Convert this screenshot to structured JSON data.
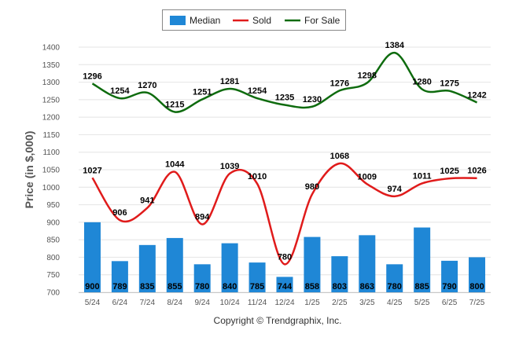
{
  "chart_data": {
    "type": "bar",
    "ylabel": "Price (in $,000)",
    "ylim": [
      700,
      1400
    ],
    "yticks": [
      700,
      750,
      800,
      850,
      900,
      950,
      1000,
      1050,
      1100,
      1150,
      1200,
      1250,
      1300,
      1350,
      1400
    ],
    "grid": true,
    "legend_position": "top-center",
    "categories": [
      "5/24",
      "6/24",
      "7/24",
      "8/24",
      "9/24",
      "10/24",
      "11/24",
      "12/24",
      "1/25",
      "2/25",
      "3/25",
      "4/25",
      "5/25",
      "6/25",
      "7/25"
    ],
    "series": [
      {
        "name": "Median",
        "type": "bar",
        "color": "#1f87d6",
        "values": [
          900,
          789,
          835,
          855,
          780,
          840,
          785,
          744,
          858,
          803,
          863,
          780,
          885,
          790,
          800
        ]
      },
      {
        "name": "Sold",
        "type": "line",
        "color": "#e01b1b",
        "values": [
          1027,
          906,
          941,
          1044,
          894,
          1039,
          1010,
          780,
          980,
          1068,
          1009,
          974,
          1011,
          1025,
          1026
        ]
      },
      {
        "name": "For Sale",
        "type": "line",
        "color": "#0e6b0e",
        "values": [
          1296,
          1254,
          1270,
          1215,
          1251,
          1281,
          1254,
          1235,
          1230,
          1276,
          1298,
          1384,
          1280,
          1275,
          1242
        ]
      }
    ]
  },
  "credit": "Copyright © Trendgraphix, Inc."
}
